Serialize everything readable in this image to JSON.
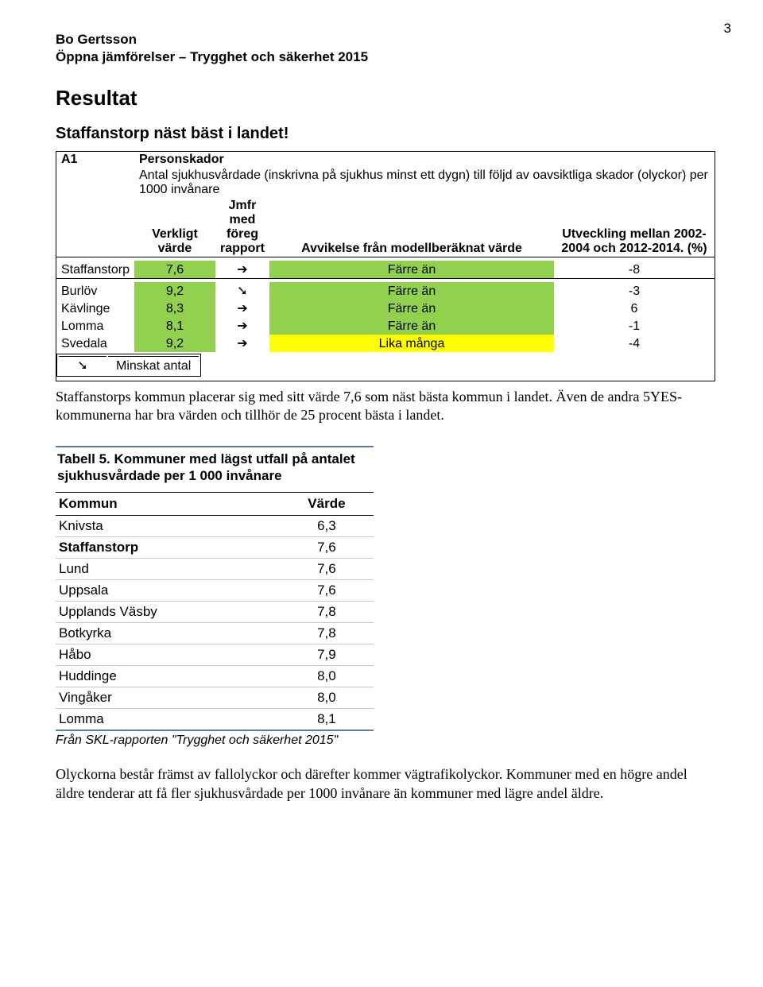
{
  "page_number": "3",
  "header": {
    "author": "Bo Gertsson",
    "subtitle": "Öppna jämförelser – Trygghet och säkerhet 2015"
  },
  "h1": "Resultat",
  "h2": "Staffanstorp näst bäst i landet!",
  "table1": {
    "code": "A1",
    "name": "Personskador",
    "desc": "Antal sjukhusvårdade (inskrivna på sjukhus minst ett dygn) till följd av oavsiktliga skador (olyckor) per 1000 invånare",
    "head": {
      "verkligt": "Verkligt värde",
      "jmfr": "Jmfr med föreg rapport",
      "avv": "Avvikelse från modellberäknat värde",
      "utv": "Utveckling mellan 2002-2004 och 2012-2014. (%)"
    },
    "row_staff": {
      "name": "Staffanstorp",
      "val": "7,6",
      "arrow": "➔",
      "avv": "Färre än",
      "utv": "-8"
    },
    "rows": [
      {
        "name": "Burlöv",
        "val": "9,2",
        "arrow": "➘",
        "avv": "Färre än",
        "utv": "-3",
        "avv_color": "green"
      },
      {
        "name": "Kävlinge",
        "val": "8,3",
        "arrow": "➔",
        "avv": "Färre än",
        "utv": "6",
        "avv_color": "green"
      },
      {
        "name": "Lomma",
        "val": "8,1",
        "arrow": "➔",
        "avv": "Färre än",
        "utv": "-1",
        "avv_color": "green"
      },
      {
        "name": "Svedala",
        "val": "9,2",
        "arrow": "➔",
        "avv": "Lika många",
        "utv": "-4",
        "avv_color": "yellow"
      }
    ],
    "legend": {
      "arrow": "➘",
      "text": "Minskat antal"
    }
  },
  "para1": "Staffanstorps kommun placerar sig med sitt värde 7,6 som näst bästa kommun i landet. Även de andra 5YES-kommunerna har bra värden och tillhör de 25 procent bästa i landet.",
  "table2": {
    "title": "Tabell 5. Kommuner med lägst utfall på antalet sjukhusvårdade per 1 000 invånare",
    "col_kommun": "Kommun",
    "col_varde": "Värde",
    "rows": [
      {
        "k": "Knivsta",
        "v": "6,3"
      },
      {
        "k": "Staffanstorp",
        "v": "7,6"
      },
      {
        "k": "Lund",
        "v": "7,6"
      },
      {
        "k": "Uppsala",
        "v": "7,6"
      },
      {
        "k": "Upplands Väsby",
        "v": "7,8"
      },
      {
        "k": "Botkyrka",
        "v": "7,8"
      },
      {
        "k": "Håbo",
        "v": "7,9"
      },
      {
        "k": "Huddinge",
        "v": "8,0"
      },
      {
        "k": "Vingåker",
        "v": "8,0"
      },
      {
        "k": "Lomma",
        "v": "8,1"
      }
    ],
    "footnote": "Från SKL-rapporten \"Trygghet och säkerhet 2015\""
  },
  "para2": "Olyckorna består främst av fallolyckor och därefter kommer vägtrafikolyckor. Kommuner med en högre andel äldre tenderar att få fler sjukhusvårdade per 1000 invånare än kommuner med lägre andel äldre."
}
